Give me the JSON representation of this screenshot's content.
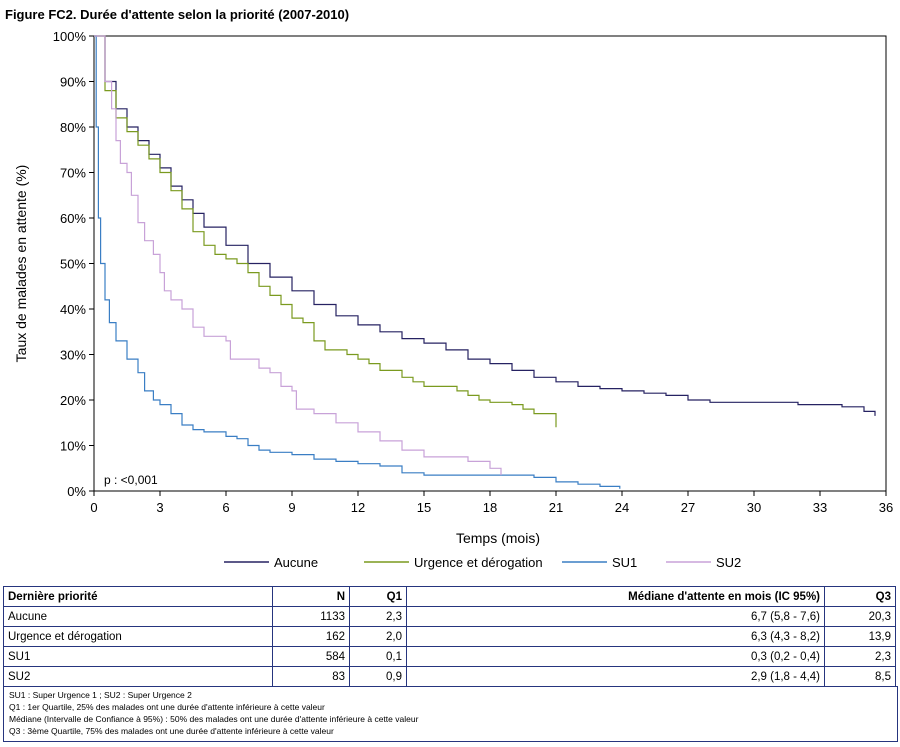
{
  "figure_title": "Figure FC2. Durée d'attente selon la priorité (2007-2010)",
  "chart_data": {
    "type": "line",
    "title": "",
    "xlabel": "Temps (mois)",
    "ylabel": "Taux de malades en attente (%)",
    "xlim": [
      0,
      36
    ],
    "ylim": [
      0,
      100
    ],
    "xticks": [
      0,
      3,
      6,
      9,
      12,
      15,
      18,
      21,
      24,
      27,
      30,
      33,
      36
    ],
    "yticks": [
      0,
      10,
      20,
      30,
      40,
      50,
      60,
      70,
      80,
      90,
      100
    ],
    "ytick_labels": [
      "0%",
      "10%",
      "20%",
      "30%",
      "40%",
      "50%",
      "60%",
      "70%",
      "80%",
      "90%",
      "100%"
    ],
    "grid": false,
    "legend_position": "bottom",
    "annotation": "p : <0,001",
    "series": [
      {
        "name": "Aucune",
        "color": "#262262",
        "points": [
          [
            0,
            100
          ],
          [
            0.5,
            90
          ],
          [
            1,
            84
          ],
          [
            1.5,
            80
          ],
          [
            2,
            77
          ],
          [
            2.5,
            74
          ],
          [
            3,
            71
          ],
          [
            3.5,
            67
          ],
          [
            4,
            64
          ],
          [
            4.5,
            61
          ],
          [
            5,
            58
          ],
          [
            6,
            54
          ],
          [
            7,
            50
          ],
          [
            8,
            47
          ],
          [
            9,
            44
          ],
          [
            10,
            41
          ],
          [
            11,
            38.5
          ],
          [
            12,
            36.5
          ],
          [
            13,
            35
          ],
          [
            14,
            33.5
          ],
          [
            15,
            32.5
          ],
          [
            16,
            31
          ],
          [
            17,
            29
          ],
          [
            18,
            28
          ],
          [
            19,
            26.5
          ],
          [
            20,
            25
          ],
          [
            21,
            24
          ],
          [
            22,
            23
          ],
          [
            23,
            22.5
          ],
          [
            24,
            22
          ],
          [
            25,
            21.5
          ],
          [
            26,
            21
          ],
          [
            27,
            20
          ],
          [
            28,
            19.5
          ],
          [
            30,
            19.5
          ],
          [
            31,
            19.5
          ],
          [
            32,
            19
          ],
          [
            34,
            18.5
          ],
          [
            35,
            17.5
          ],
          [
            35.5,
            16.5
          ]
        ]
      },
      {
        "name": "Urgence et dérogation",
        "color": "#7a9a1f",
        "points": [
          [
            0,
            100
          ],
          [
            0.5,
            88
          ],
          [
            1,
            82
          ],
          [
            1.5,
            79
          ],
          [
            2,
            76
          ],
          [
            2.5,
            73
          ],
          [
            3,
            70
          ],
          [
            3.5,
            66
          ],
          [
            4,
            62
          ],
          [
            4.5,
            57
          ],
          [
            5,
            54
          ],
          [
            5.5,
            52
          ],
          [
            6,
            51
          ],
          [
            6.5,
            50
          ],
          [
            7,
            48
          ],
          [
            7.5,
            45
          ],
          [
            8,
            43
          ],
          [
            8.5,
            41
          ],
          [
            9,
            38
          ],
          [
            9.5,
            37
          ],
          [
            10,
            33
          ],
          [
            10.5,
            31
          ],
          [
            11,
            31
          ],
          [
            11.5,
            30
          ],
          [
            12,
            29
          ],
          [
            12.5,
            28
          ],
          [
            13,
            26.5
          ],
          [
            14,
            25
          ],
          [
            14.5,
            24
          ],
          [
            15,
            23
          ],
          [
            16,
            23
          ],
          [
            16.5,
            22
          ],
          [
            17,
            21
          ],
          [
            17.5,
            20
          ],
          [
            18,
            19.5
          ],
          [
            19,
            19
          ],
          [
            19.5,
            18
          ],
          [
            20,
            17
          ],
          [
            21,
            17
          ],
          [
            21,
            15
          ],
          [
            21,
            14
          ]
        ]
      },
      {
        "name": "SU1",
        "color": "#3a7ec4",
        "points": [
          [
            0,
            100
          ],
          [
            0.1,
            80
          ],
          [
            0.2,
            60
          ],
          [
            0.3,
            50
          ],
          [
            0.5,
            42
          ],
          [
            0.7,
            37
          ],
          [
            1,
            33
          ],
          [
            1.5,
            29
          ],
          [
            2,
            26
          ],
          [
            2.3,
            22
          ],
          [
            2.7,
            20
          ],
          [
            3,
            19
          ],
          [
            3.5,
            17
          ],
          [
            4,
            14.5
          ],
          [
            4.5,
            13.5
          ],
          [
            5,
            13
          ],
          [
            6,
            12
          ],
          [
            6.5,
            11.5
          ],
          [
            7,
            10
          ],
          [
            7.5,
            9
          ],
          [
            8,
            8.5
          ],
          [
            9,
            8
          ],
          [
            10,
            7
          ],
          [
            11,
            6.5
          ],
          [
            12,
            6
          ],
          [
            13,
            5.5
          ],
          [
            14,
            4
          ],
          [
            15,
            3.5
          ],
          [
            16,
            3.5
          ],
          [
            17,
            3.5
          ],
          [
            18,
            3.5
          ],
          [
            19,
            3.5
          ],
          [
            20,
            3
          ],
          [
            21,
            2
          ],
          [
            22,
            1.5
          ],
          [
            23,
            1
          ],
          [
            23.9,
            0.5
          ]
        ]
      },
      {
        "name": "SU2",
        "color": "#c8a2d8",
        "points": [
          [
            0,
            100
          ],
          [
            0.5,
            90
          ],
          [
            0.8,
            84
          ],
          [
            1,
            77
          ],
          [
            1.2,
            72
          ],
          [
            1.5,
            70
          ],
          [
            1.7,
            65
          ],
          [
            2,
            59
          ],
          [
            2.3,
            55
          ],
          [
            2.7,
            52
          ],
          [
            3,
            48
          ],
          [
            3.2,
            44
          ],
          [
            3.5,
            42
          ],
          [
            4,
            40
          ],
          [
            4.5,
            36
          ],
          [
            5,
            34
          ],
          [
            6,
            33
          ],
          [
            6.2,
            29
          ],
          [
            7,
            29
          ],
          [
            7.5,
            27
          ],
          [
            8,
            26
          ],
          [
            8.5,
            23
          ],
          [
            9,
            22
          ],
          [
            9.2,
            18
          ],
          [
            10,
            17
          ],
          [
            11,
            15
          ],
          [
            12,
            13
          ],
          [
            13,
            11
          ],
          [
            14,
            9
          ],
          [
            15,
            7.5
          ],
          [
            16,
            7.5
          ],
          [
            17,
            6.5
          ],
          [
            18,
            5
          ],
          [
            18.5,
            3.5
          ]
        ]
      }
    ]
  },
  "table": {
    "headers": [
      "Dernière priorité",
      "N",
      "Q1",
      "Médiane d'attente en mois (IC 95%)",
      "Q3"
    ],
    "rows": [
      [
        "Aucune",
        "1133",
        "2,3",
        "6,7 (5,8 - 7,6)",
        "20,3"
      ],
      [
        "Urgence et dérogation",
        "162",
        "2,0",
        "6,3 (4,3 - 8,2)",
        "13,9"
      ],
      [
        "SU1",
        "584",
        "0,1",
        "0,3 (0,2 - 0,4)",
        "2,3"
      ],
      [
        "SU2",
        "83",
        "0,9",
        "2,9 (1,8 - 4,4)",
        "8,5"
      ]
    ]
  },
  "notes": [
    "SU1 : Super Urgence 1 ; SU2 : Super Urgence 2",
    "Q1 : 1er Quartile, 25% des malades ont une durée d'attente inférieure à cette valeur",
    "Médiane (Intervalle de Confiance à 95%) : 50% des malades ont une durée d'attente inférieure à cette valeur",
    "Q3 : 3ème Quartile, 75% des malades ont une durée d'attente inférieure à cette valeur"
  ]
}
